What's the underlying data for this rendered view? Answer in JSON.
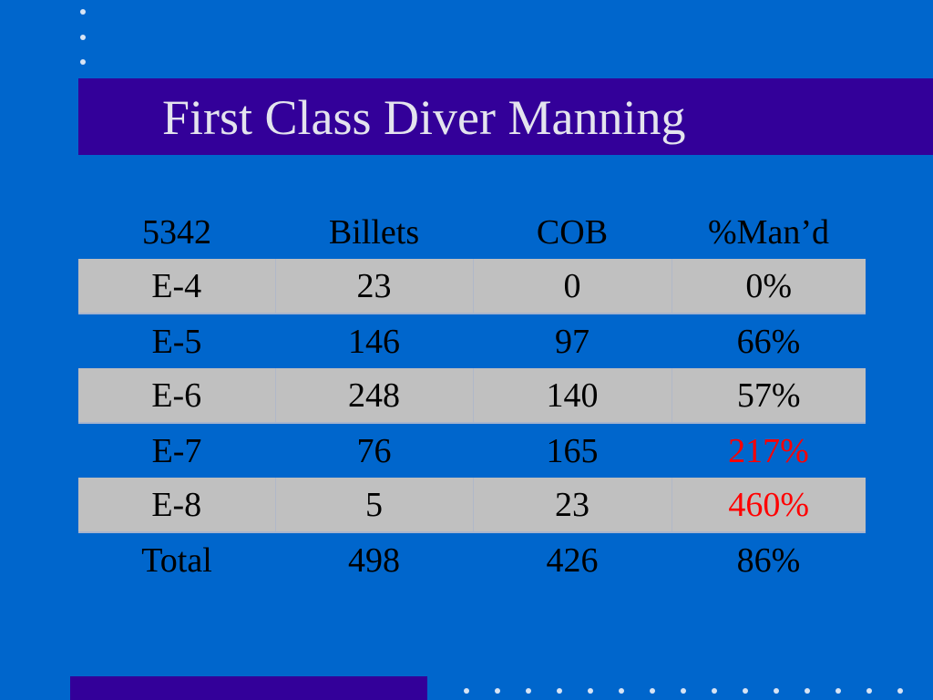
{
  "slide": {
    "title": "First Class Diver Manning"
  },
  "table": {
    "headers": [
      "5342",
      "Billets",
      "COB",
      "%Man’d"
    ],
    "rows": [
      {
        "rate": "E-4",
        "billets": "23",
        "cob": "0",
        "manned": "0%",
        "shaded": true,
        "alert": false
      },
      {
        "rate": "E-5",
        "billets": "146",
        "cob": "97",
        "manned": "66%",
        "shaded": false,
        "alert": false
      },
      {
        "rate": "E-6",
        "billets": "248",
        "cob": "140",
        "manned": "57%",
        "shaded": true,
        "alert": false
      },
      {
        "rate": "E-7",
        "billets": "76",
        "cob": "165",
        "manned": "217%",
        "shaded": false,
        "alert": true
      },
      {
        "rate": "E-8",
        "billets": "5",
        "cob": "23",
        "manned": "460%",
        "shaded": true,
        "alert": true
      },
      {
        "rate": "Total",
        "billets": "498",
        "cob": "426",
        "manned": "86%",
        "shaded": false,
        "alert": false
      }
    ]
  },
  "colors": {
    "background": "#0066cc",
    "title_bar": "#330099",
    "title_text": "#e4e4ee",
    "shaded_row": "#c0c0c0",
    "alert_text": "#ff0000"
  }
}
